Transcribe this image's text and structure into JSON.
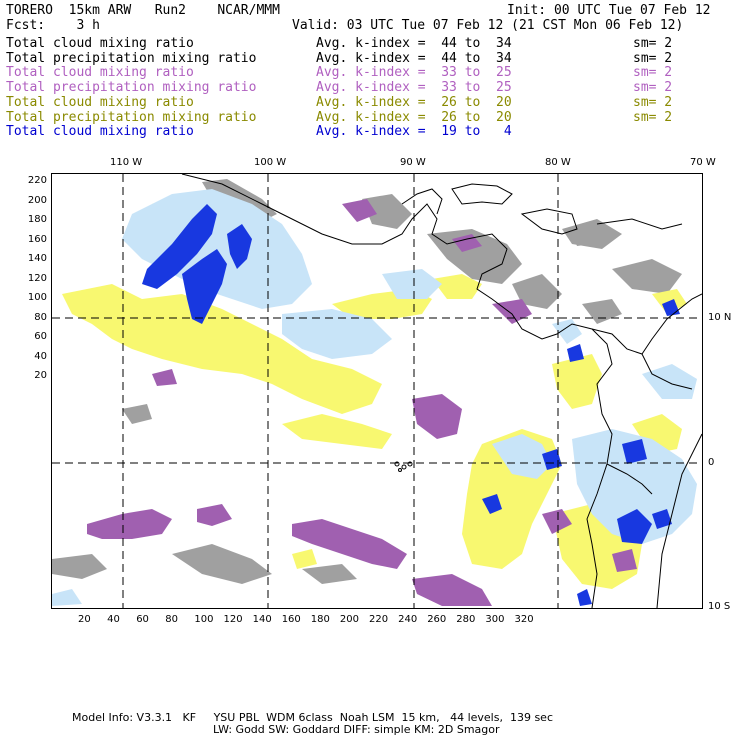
{
  "header": {
    "model": "TORERO  15km ARW   Run2    NCAR/MMM",
    "init": "Init: 00 UTC Tue 07 Feb 12",
    "fcst": "Fcst:    3 h",
    "valid": "Valid: 03 UTC Tue 07 Feb 12 (21 CST Mon 06 Feb 12)"
  },
  "legend": [
    {
      "field": "Total cloud mixing ratio",
      "kindex": "Avg. k-index =  44 to  34",
      "sm": "sm= 2",
      "color": "#000000"
    },
    {
      "field": "Total precipitation mixing ratio",
      "kindex": "Avg. k-index =  44 to  34",
      "sm": "sm= 2",
      "color": "#000000"
    },
    {
      "field": "Total cloud mixing ratio",
      "kindex": "Avg. k-index =  33 to  25",
      "sm": "sm= 2",
      "color": "#b060c0"
    },
    {
      "field": "Total precipitation mixing ratio",
      "kindex": "Avg. k-index =  33 to  25",
      "sm": "sm= 2",
      "color": "#b060c0"
    },
    {
      "field": "Total cloud mixing ratio",
      "kindex": "Avg. k-index =  26 to  20",
      "sm": "sm= 2",
      "color": "#8a8a00"
    },
    {
      "field": "Total precipitation mixing ratio",
      "kindex": "Avg. k-index =  26 to  20",
      "sm": "sm= 2",
      "color": "#8a8a00"
    },
    {
      "field": "Total cloud mixing ratio",
      "kindex": "Avg. k-index =  19 to   4",
      "sm": "",
      "color": "#0000d0"
    }
  ],
  "axes": {
    "top_lon": [
      "110 W",
      "100 W",
      "90 W",
      "80 W",
      "70 W"
    ],
    "right_lat": [
      "10 N",
      "0",
      "10 S"
    ],
    "left_ticks": [
      "220",
      "200",
      "180",
      "160",
      "140",
      "120",
      "100",
      "80",
      "60",
      "40",
      "20"
    ],
    "bottom_ticks": [
      "20",
      "40",
      "60",
      "80",
      "100",
      "120",
      "140",
      "160",
      "180",
      "200",
      "220",
      "240",
      "260",
      "280",
      "300",
      "320"
    ]
  },
  "colors": {
    "gray": "#a0a0a0",
    "purple": "#a060b0",
    "yellow": "#f8f870",
    "lightblue": "#c8e4f8",
    "blue": "#1838e0"
  },
  "footer": {
    "line1": "Model Info: V3.3.1   KF     YSU PBL  WDM 6class  Noah LSM  15 km,   44 levels,  139 sec",
    "line2": "LW: Godd SW: Goddard DIFF: simple KM: 2D Smagor"
  }
}
